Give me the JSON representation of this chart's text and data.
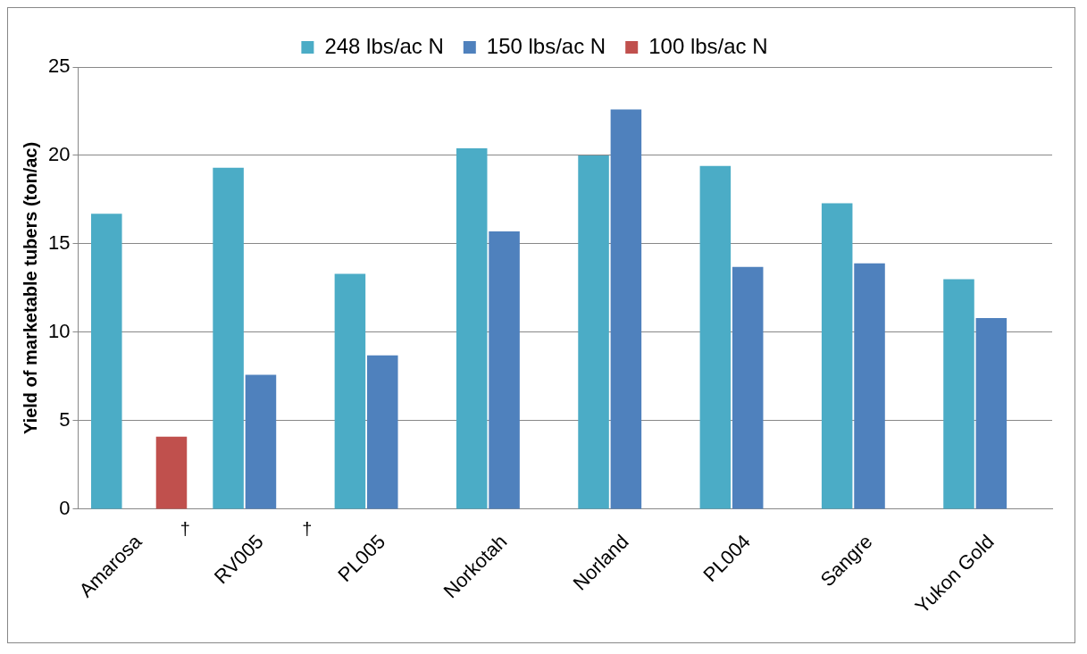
{
  "chart_data": {
    "type": "bar",
    "ylabel": "Yield of marketable tubers (ton/ac)",
    "categories": [
      "Amarosa",
      "RV005",
      "PL005",
      "Norkotah",
      "Norland",
      "PL004",
      "Sangre",
      "Yukon Gold"
    ],
    "series": [
      {
        "name": "248 lbs/ac N",
        "color": "#4bacc6",
        "values": [
          16.7,
          19.3,
          13.3,
          20.4,
          20.0,
          19.4,
          17.3,
          13.0
        ]
      },
      {
        "name": "150 lbs/ac N",
        "color": "#4f81bd",
        "values": [
          null,
          7.6,
          8.7,
          15.7,
          22.6,
          13.7,
          13.9,
          10.8
        ]
      },
      {
        "name": "100 lbs/ac N",
        "color": "#c0504d",
        "values": [
          4.1,
          null,
          null,
          null,
          null,
          null,
          null,
          null
        ]
      }
    ],
    "ylim": [
      0,
      25
    ],
    "yticks": [
      0,
      5,
      10,
      15,
      20,
      25
    ],
    "grid": "y",
    "legend": "top",
    "annotations": [
      "†",
      "†"
    ]
  }
}
